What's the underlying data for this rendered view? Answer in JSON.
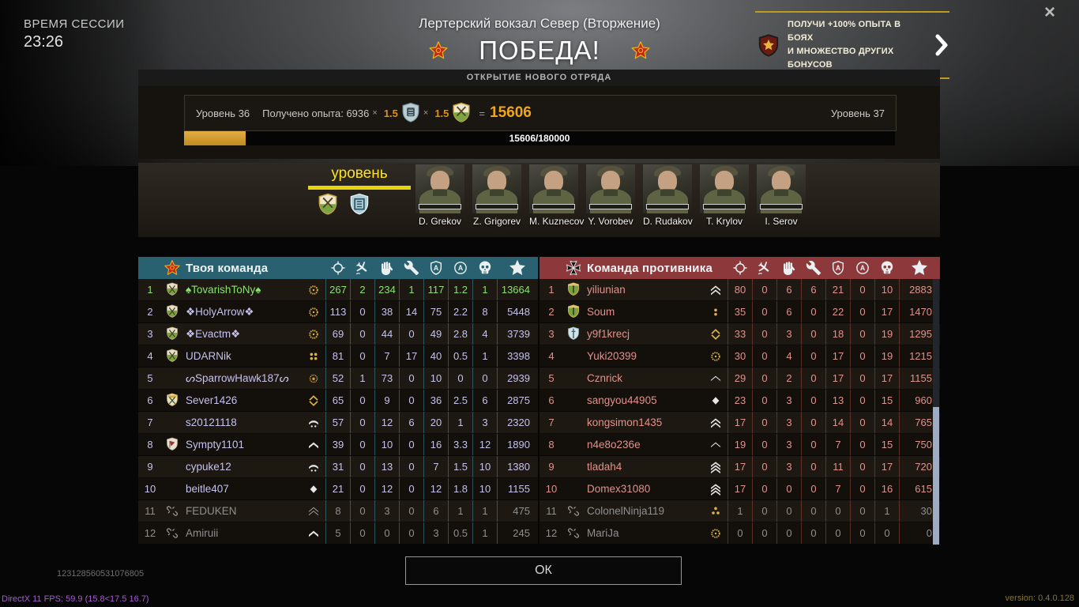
{
  "session": {
    "label": "ВРЕМЯ СЕССИИ",
    "time": "23:26"
  },
  "header": {
    "map_title": "Лертерский вокзал Север (Вторжение)",
    "result": "ПОБЕДА!"
  },
  "icons": {
    "close_glyph": "×"
  },
  "promo": {
    "line1": "ПОЛУЧИ +100% ОПЫТА В БОЯХ",
    "line2": "И МНОЖЕСТВО ДРУГИХ БОНУСОВ"
  },
  "banner": {
    "title": "ОТКРЫТИЕ НОВОГО ОТРЯДА"
  },
  "xp": {
    "level_left": "Уровень 36",
    "gained_label": "Получено опыта:",
    "base": "6936",
    "times": "×",
    "mult1": "1.5",
    "mult2": "1.5",
    "equals": "=",
    "total": "15606",
    "level_right": "Уровень 37",
    "progress_text": "15606/180000",
    "progress_pct": 8.67
  },
  "squad": {
    "level_label": "уровень",
    "soldiers": [
      {
        "name": "D. Grekov"
      },
      {
        "name": "Z. Grigorev"
      },
      {
        "name": "M. Kuznecov"
      },
      {
        "name": "Y. Vorobev"
      },
      {
        "name": "D. Rudakov"
      },
      {
        "name": "T. Krylov"
      },
      {
        "name": "I. Serov"
      }
    ]
  },
  "stat_columns": [
    "crosshair-icon",
    "plane-down-icon",
    "hand-icon",
    "wrench-icon",
    "shield-a-icon",
    "circle-a-icon",
    "skull-icon",
    "star-icon"
  ],
  "colors": {
    "self_text": "#8ee06e",
    "left_battle_text": "#8f8f8f",
    "gold": "#e8a81e",
    "progress_fill": "#d29a2d",
    "promo_accent": "#c09a1e",
    "victory_star": "#c8271c"
  },
  "teams": [
    {
      "name": "Твоя команда",
      "faction": "soviet",
      "header_color": "#2a6170",
      "sep_color": "rgba(62,140,160,0.55)",
      "text_color": "#c5c2ec",
      "rows": [
        {
          "rank": 1,
          "clan": "clan-green",
          "name": "♠TovarishToNy♠",
          "medal": "wreath",
          "state": "self",
          "values": [
            267,
            2,
            234,
            1,
            117,
            "1.2",
            1,
            13664
          ]
        },
        {
          "rank": 2,
          "clan": "clan-green",
          "name": "❖HolyArrow❖",
          "medal": "wreath",
          "state": "normal",
          "values": [
            113,
            0,
            38,
            14,
            75,
            "2.2",
            8,
            5448
          ]
        },
        {
          "rank": 3,
          "clan": "clan-green",
          "name": "❖Evactm❖",
          "medal": "wreath",
          "state": "normal",
          "values": [
            69,
            0,
            44,
            0,
            49,
            "2.8",
            4,
            3739
          ]
        },
        {
          "rank": 4,
          "clan": "clan-green",
          "name": "UDARNik",
          "medal": "dots4",
          "state": "normal",
          "values": [
            81,
            0,
            7,
            17,
            40,
            "0.5",
            1,
            3398
          ]
        },
        {
          "rank": 5,
          "clan": "",
          "name": "ᔕSparrowHawk187ᔕ",
          "medal": "wreath-open",
          "state": "normal",
          "values": [
            52,
            1,
            73,
            0,
            10,
            0,
            0,
            2939
          ]
        },
        {
          "rank": 6,
          "clan": "clan-green2",
          "name": "Sever1426",
          "medal": "gold-diamond",
          "state": "normal",
          "values": [
            65,
            0,
            9,
            0,
            36,
            "2.5",
            6,
            2875
          ]
        },
        {
          "rank": 7,
          "clan": "",
          "name": "s20121118",
          "medal": "chevron-dots",
          "state": "normal",
          "values": [
            57,
            0,
            12,
            6,
            20,
            1,
            3,
            2320
          ]
        },
        {
          "rank": 8,
          "clan": "clan-red",
          "name": "Sympty1101",
          "medal": "chevron1",
          "state": "normal",
          "values": [
            39,
            0,
            10,
            0,
            16,
            "3.3",
            12,
            1890
          ]
        },
        {
          "rank": 9,
          "clan": "",
          "name": "cypuke12",
          "medal": "chevron-dots",
          "state": "normal",
          "values": [
            31,
            0,
            13,
            0,
            7,
            "1.5",
            10,
            1380
          ]
        },
        {
          "rank": 10,
          "clan": "",
          "name": "beitle407",
          "medal": "diamond",
          "state": "normal",
          "values": [
            21,
            0,
            12,
            0,
            12,
            "1.8",
            10,
            1155
          ]
        },
        {
          "rank": 11,
          "clan": "disconnected",
          "name": "FEDUKEN",
          "medal": "chevron2-outline",
          "state": "left",
          "values": [
            8,
            0,
            3,
            0,
            6,
            1,
            1,
            475
          ]
        },
        {
          "rank": 12,
          "clan": "disconnected",
          "name": "Amiruii",
          "medal": "chevron1",
          "state": "left",
          "values": [
            5,
            0,
            0,
            0,
            3,
            "0.5",
            1,
            245
          ]
        }
      ]
    },
    {
      "name": "Команда противника",
      "faction": "german",
      "header_color": "#8d393c",
      "sep_color": "rgba(165,75,70,0.5)",
      "text_color": "#e0928c",
      "rows": [
        {
          "rank": 1,
          "clan": "clan-gold",
          "name": "yiliunian",
          "medal": "chevron2",
          "state": "normal",
          "values": [
            80,
            0,
            6,
            6,
            21,
            0,
            10,
            2883
          ]
        },
        {
          "rank": 2,
          "clan": "clan-gold",
          "name": "Soum",
          "medal": "dots2",
          "state": "normal",
          "values": [
            35,
            0,
            6,
            0,
            22,
            0,
            17,
            1470
          ]
        },
        {
          "rank": 3,
          "clan": "clan-blue",
          "name": "y9f1krecj",
          "medal": "gold-diamond",
          "state": "normal",
          "values": [
            33,
            0,
            3,
            0,
            18,
            0,
            19,
            1295
          ]
        },
        {
          "rank": 4,
          "clan": "",
          "name": "Yuki20399",
          "medal": "wreath",
          "state": "normal",
          "values": [
            30,
            0,
            4,
            0,
            17,
            0,
            19,
            1215
          ]
        },
        {
          "rank": 5,
          "clan": "",
          "name": "Cznrick",
          "medal": "chevron-outline",
          "state": "normal",
          "values": [
            29,
            0,
            2,
            0,
            17,
            0,
            17,
            1155
          ]
        },
        {
          "rank": 6,
          "clan": "",
          "name": "sangyou44905",
          "medal": "diamond",
          "state": "normal",
          "values": [
            23,
            0,
            3,
            0,
            13,
            0,
            15,
            960
          ]
        },
        {
          "rank": 7,
          "clan": "",
          "name": "kongsimon1435",
          "medal": "chevron2",
          "state": "normal",
          "values": [
            17,
            0,
            3,
            0,
            14,
            0,
            14,
            765
          ]
        },
        {
          "rank": 8,
          "clan": "",
          "name": "n4e8o236e",
          "medal": "chevron-outline",
          "state": "normal",
          "values": [
            19,
            0,
            3,
            0,
            7,
            0,
            15,
            750
          ]
        },
        {
          "rank": 9,
          "clan": "",
          "name": "tladah4",
          "medal": "chevron3",
          "state": "normal",
          "values": [
            17,
            0,
            3,
            0,
            11,
            0,
            17,
            720
          ]
        },
        {
          "rank": 10,
          "clan": "",
          "name": "Domex31080",
          "medal": "chevron3",
          "state": "normal",
          "values": [
            17,
            0,
            0,
            0,
            7,
            0,
            16,
            615
          ]
        },
        {
          "rank": 11,
          "clan": "disconnected",
          "name": "ColonelNinja119",
          "medal": "dots3",
          "state": "left",
          "values": [
            1,
            0,
            0,
            0,
            0,
            0,
            1,
            30
          ]
        },
        {
          "rank": 12,
          "clan": "disconnected",
          "name": "MariJa",
          "medal": "wreath",
          "state": "left",
          "values": [
            0,
            0,
            0,
            0,
            0,
            0,
            0,
            0
          ]
        }
      ]
    }
  ],
  "ok_label": "ОК",
  "footer": {
    "id_number": "123128560531076805",
    "fps_text": "DirectX 11 FPS: 59.9 (15.8<17.5 16.7)",
    "version": "version: 0.4.0.128"
  }
}
